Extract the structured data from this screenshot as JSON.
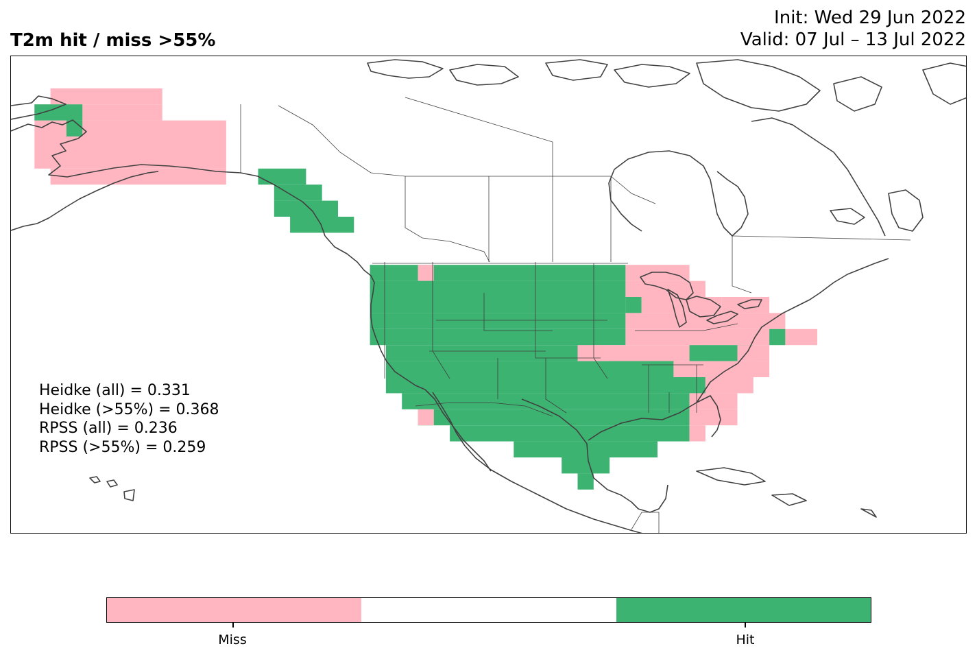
{
  "title_left": "T2m hit / miss  >55%",
  "title_right": {
    "init": "Init: Wed 29 Jun 2022",
    "valid": "Valid: 07 Jul – 13 Jul 2022"
  },
  "stats": [
    "Heidke (all) = 0.331",
    "Heidke (>55%) = 0.368",
    "RPSS (all) = 0.236",
    "RPSS (>55%) = 0.259"
  ],
  "colors": {
    "miss": "#ffb6c1",
    "neutral": "#ffffff",
    "hit": "#3cb371",
    "coast": "#404040"
  },
  "legend": {
    "miss_label": "Miss",
    "hit_label": "Hit"
  }
}
